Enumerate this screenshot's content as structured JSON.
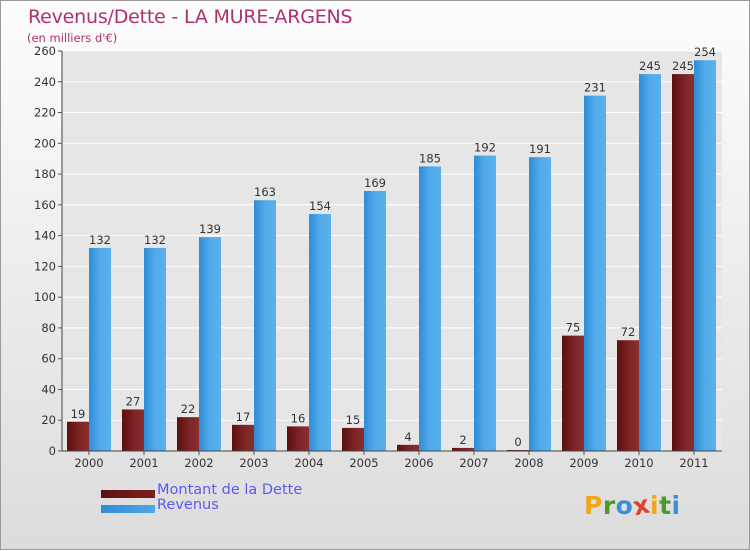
{
  "title": "Revenus/Dette - LA MURE-ARGENS",
  "subtitle": "(en milliers d'€)",
  "logo": {
    "letters": [
      "P",
      "r",
      "o",
      "x",
      "i",
      "t",
      "i"
    ],
    "colors": [
      "#f2a51a",
      "#4c9a2a",
      "#3a8fd8",
      "#e0422f",
      "#f2a51a",
      "#4c9a2a",
      "#3a8fd8"
    ]
  },
  "colors": {
    "debt": "#7a1f1f",
    "revenue": "#4ea7e8",
    "title": "#b0306e",
    "legend_text": "#5a5af0"
  },
  "chart_data": {
    "type": "bar",
    "title": "Revenus/Dette - LA MURE-ARGENS",
    "subtitle": "(en milliers d'€)",
    "categories": [
      "2000",
      "2001",
      "2002",
      "2003",
      "2004",
      "2005",
      "2006",
      "2007",
      "2008",
      "2009",
      "2010",
      "2011"
    ],
    "series": [
      {
        "name": "Montant de la Dette",
        "values": [
          19,
          27,
          22,
          17,
          16,
          15,
          4,
          2,
          0,
          75,
          72,
          245
        ]
      },
      {
        "name": "Revenus",
        "values": [
          132,
          132,
          139,
          163,
          154,
          169,
          185,
          192,
          191,
          231,
          245,
          254
        ]
      }
    ],
    "ylim": [
      0,
      260
    ],
    "yticks": [
      0,
      20,
      40,
      60,
      80,
      100,
      120,
      140,
      160,
      180,
      200,
      220,
      240,
      260
    ],
    "grid": true,
    "legend_position": "bottom-left"
  }
}
